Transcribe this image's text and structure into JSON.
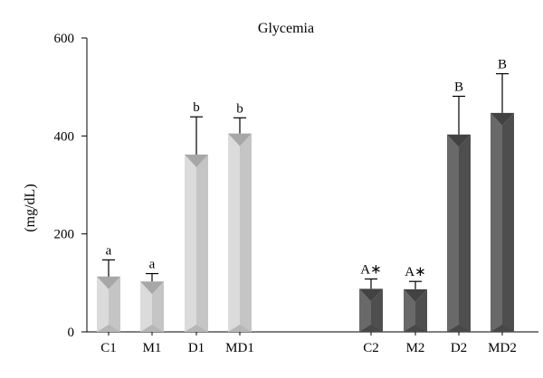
{
  "chart_data": {
    "type": "bar",
    "title": "Glycemia",
    "xlabel": "",
    "ylabel": "(mg/dL)",
    "ylim": [
      0,
      600
    ],
    "yticks": [
      0,
      200,
      400,
      600
    ],
    "grid": false,
    "legend": "none",
    "categories": [
      "C1",
      "M1",
      "D1",
      "MD1",
      "C2",
      "M2",
      "D2",
      "MD2"
    ],
    "values": [
      113,
      103,
      362,
      405,
      88,
      87,
      403,
      447
    ],
    "errors": [
      34,
      16,
      77,
      32,
      20,
      16,
      78,
      80
    ],
    "labels": [
      "a",
      "a",
      "b",
      "b",
      "A∗",
      "A∗",
      "B",
      "B"
    ],
    "groups": [
      {
        "categories": [
          "C1",
          "M1",
          "D1",
          "MD1"
        ],
        "color": "#d6d6d6"
      },
      {
        "categories": [
          "C2",
          "M2",
          "D2",
          "MD2"
        ],
        "color": "#555555"
      }
    ]
  }
}
